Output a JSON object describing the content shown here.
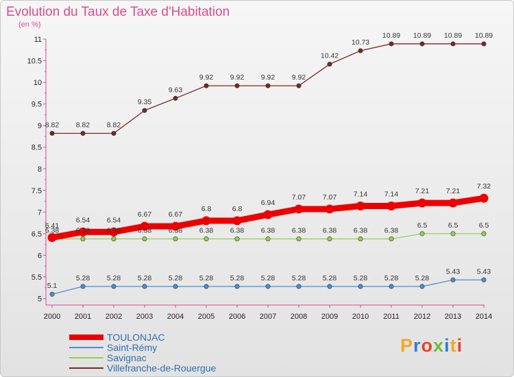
{
  "title": "Evolution du Taux de Taxe d'Habitation",
  "subtitle": "(en %)",
  "chart_data": {
    "type": "line",
    "x": [
      "2000",
      "2001",
      "2002",
      "2003",
      "2004",
      "2005",
      "2006",
      "2007",
      "2008",
      "2009",
      "2010",
      "2011",
      "2012",
      "2013",
      "2014"
    ],
    "ylim": [
      5,
      11
    ],
    "yticks": [
      "5",
      "5.5",
      "6",
      "6.5",
      "7",
      "7.5",
      "8",
      "8.5",
      "9",
      "9.5",
      "10",
      "10.5",
      "11"
    ],
    "grid": false,
    "legend_position": "bottom-left",
    "series": [
      {
        "name": "TOULONJAC",
        "color": "#ee0000",
        "values": [
          6.41,
          6.54,
          6.54,
          6.67,
          6.67,
          6.8,
          6.8,
          6.94,
          7.07,
          7.07,
          7.14,
          7.14,
          7.21,
          7.21,
          7.32
        ],
        "labels": [
          "6.41",
          "6.54",
          "6.54",
          "6.67",
          "6.67",
          "6.8",
          "6.8",
          "6.94",
          "7.07",
          "7.07",
          "7.14",
          "7.14",
          "7.21",
          "7.21",
          "7.32"
        ]
      },
      {
        "name": "Saint-Rémy",
        "color": "#4a8fd0",
        "values": [
          5.1,
          5.28,
          5.28,
          5.28,
          5.28,
          5.28,
          5.28,
          5.28,
          5.28,
          5.28,
          5.28,
          5.28,
          5.28,
          5.43,
          5.43
        ],
        "labels": [
          "5.1",
          "5.28",
          "5.28",
          "5.28",
          "5.28",
          "5.28",
          "5.28",
          "5.28",
          "5.28",
          "5.28",
          "5.28",
          "5.28",
          "5.28",
          "5.43",
          "5.43"
        ]
      },
      {
        "name": "Savignac",
        "color": "#8fd14f",
        "values": [
          6.38,
          6.38,
          6.38,
          6.38,
          6.38,
          6.38,
          6.38,
          6.38,
          6.38,
          6.38,
          6.38,
          6.38,
          6.5,
          6.5,
          6.5
        ],
        "labels": [
          "6.38",
          "6.38",
          "6.38",
          "6.38",
          "6.38",
          "6.38",
          "6.38",
          "6.38",
          "6.38",
          "6.38",
          "6.38",
          "6.38",
          "6.5",
          "6.5",
          "6.5"
        ]
      },
      {
        "name": "Villefranche-de-Rouergue",
        "color": "#7a2626",
        "values": [
          8.82,
          8.82,
          8.82,
          9.35,
          9.63,
          9.92,
          9.92,
          9.92,
          9.92,
          10.42,
          10.73,
          10.89,
          10.89,
          10.89,
          10.89
        ],
        "labels": [
          "8.82",
          "8.82",
          "8.82",
          "9.35",
          "9.63",
          "9.92",
          "9.92",
          "9.92",
          "9.92",
          "10.42",
          "10.73",
          "10.89",
          "10.89",
          "10.89",
          "10.89"
        ]
      }
    ]
  },
  "logo_text": "Proxiti"
}
